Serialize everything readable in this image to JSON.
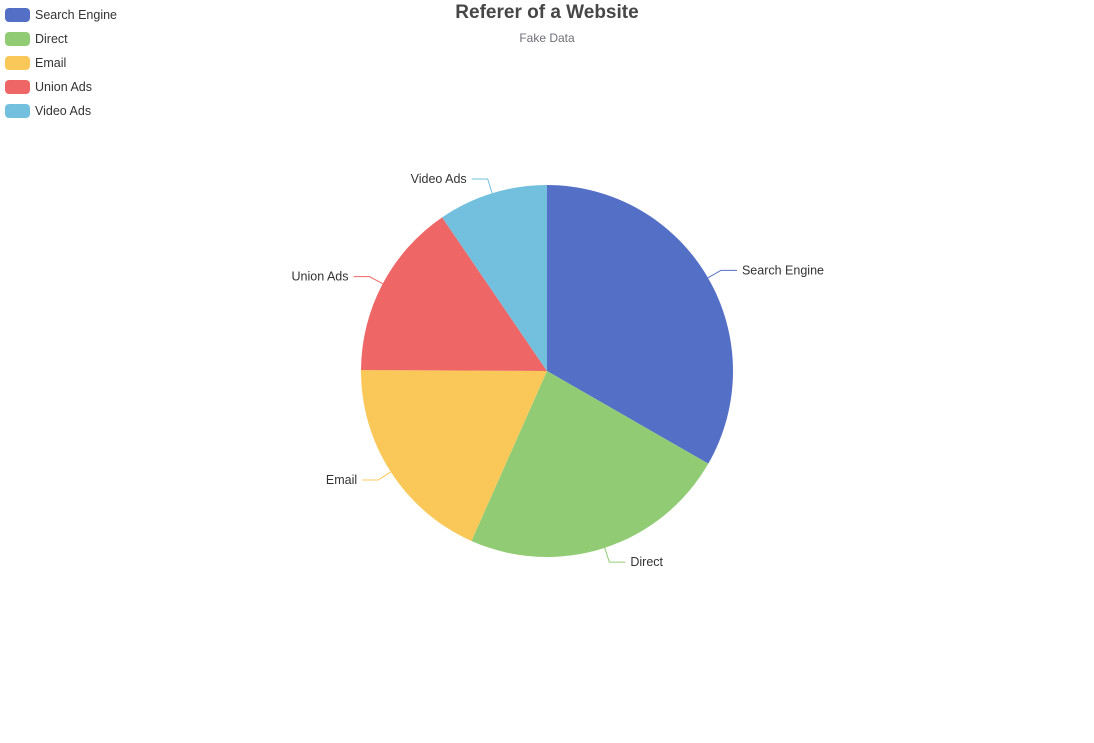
{
  "chart_data": {
    "type": "pie",
    "title": "Referer of a Website",
    "subtitle": "Fake Data",
    "legend_position": "top-left",
    "slices": [
      {
        "label": "Search Engine",
        "value": 1048,
        "color": "#5470c6"
      },
      {
        "label": "Direct",
        "value": 735,
        "color": "#91cc75"
      },
      {
        "label": "Email",
        "value": 580,
        "color": "#fac858"
      },
      {
        "label": "Union Ads",
        "value": 484,
        "color": "#ee6666"
      },
      {
        "label": "Video Ads",
        "value": 300,
        "color": "#73c0de"
      }
    ]
  }
}
